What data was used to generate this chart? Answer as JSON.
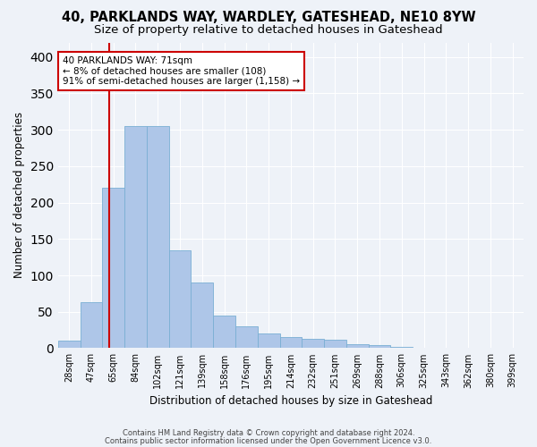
{
  "title1": "40, PARKLANDS WAY, WARDLEY, GATESHEAD, NE10 8YW",
  "title2": "Size of property relative to detached houses in Gateshead",
  "xlabel": "Distribution of detached houses by size in Gateshead",
  "ylabel": "Number of detached properties",
  "categories": [
    "28sqm",
    "47sqm",
    "65sqm",
    "84sqm",
    "102sqm",
    "121sqm",
    "139sqm",
    "158sqm",
    "176sqm",
    "195sqm",
    "214sqm",
    "232sqm",
    "251sqm",
    "269sqm",
    "288sqm",
    "306sqm",
    "325sqm",
    "343sqm",
    "362sqm",
    "380sqm",
    "399sqm"
  ],
  "values": [
    10,
    63,
    221,
    305,
    305,
    135,
    90,
    45,
    30,
    20,
    15,
    13,
    12,
    5,
    4,
    2,
    1,
    1,
    1,
    1,
    1
  ],
  "bar_color": "#aec6e8",
  "bar_edge_color": "#7aafd4",
  "vline_color": "#cc0000",
  "annotation_box_color": "#ffffff",
  "annotation_box_edge_color": "#cc0000",
  "annotation_title": "40 PARKLANDS WAY: 71sqm",
  "annotation_line1": "← 8% of detached houses are smaller (108)",
  "annotation_line2": "91% of semi-detached houses are larger (1,158) →",
  "background_color": "#eef2f8",
  "grid_color": "#ffffff",
  "footer1": "Contains HM Land Registry data © Crown copyright and database right 2024.",
  "footer2": "Contains public sector information licensed under the Open Government Licence v3.0.",
  "ylim": [
    0,
    420
  ],
  "yticks": [
    0,
    50,
    100,
    150,
    200,
    250,
    300,
    350,
    400
  ],
  "title1_fontsize": 10.5,
  "title2_fontsize": 9.5,
  "xlabel_fontsize": 8.5,
  "ylabel_fontsize": 8.5,
  "tick_fontsize": 7,
  "annotation_fontsize": 7.5,
  "footer_fontsize": 6
}
